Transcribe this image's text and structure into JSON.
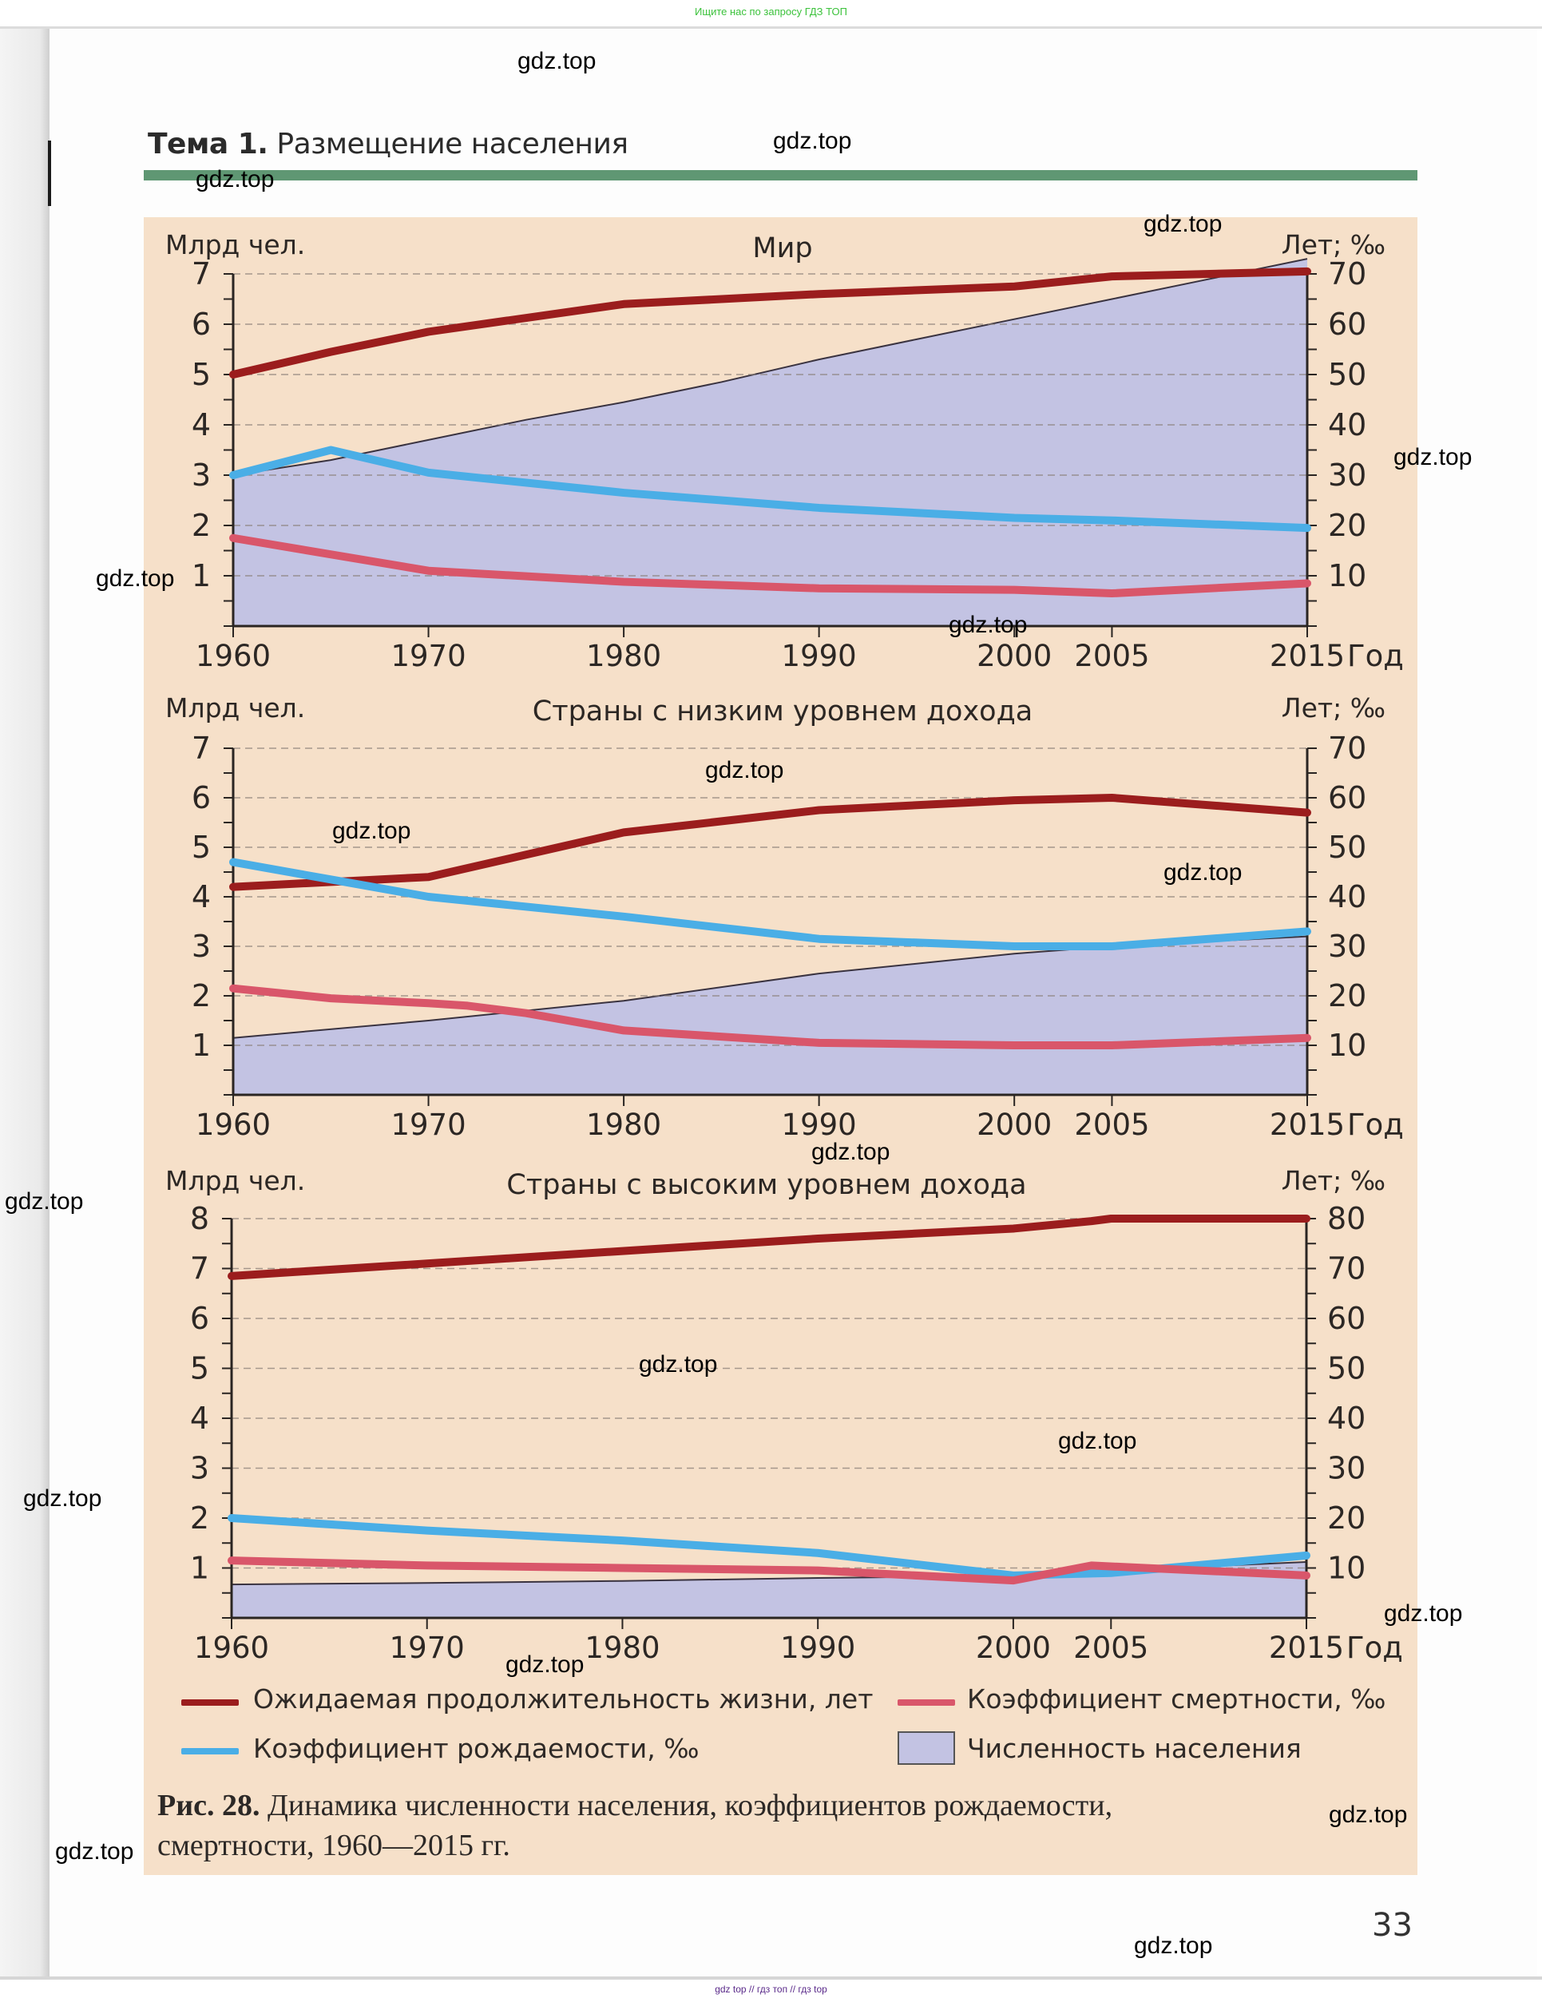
{
  "banner_top": "Ищите нас по запросу ГДЗ ТОП",
  "banner_bottom": "gdz top // гдз топ // гдз top",
  "header": {
    "topic_label": "Тема 1.",
    "topic_title": "Размещение населения"
  },
  "page_number": "33",
  "watermarks": [
    {
      "text": "gdz.top",
      "pos": "top-left"
    },
    {
      "text": "gdz.top",
      "pos": "header-center"
    },
    {
      "text": "gdz.top",
      "pos": "header-left"
    },
    {
      "text": "gdz.top",
      "pos": "chart1-top-right"
    },
    {
      "text": "gdz.top",
      "pos": "right-margin"
    },
    {
      "text": "gdz.top",
      "pos": "chart1-left"
    },
    {
      "text": "gdz.top",
      "pos": "chart1-bottom"
    },
    {
      "text": "gdz.top",
      "pos": "chart2-top"
    },
    {
      "text": "gdz.top",
      "pos": "chart2-left"
    },
    {
      "text": "gdz.top",
      "pos": "chart2-right"
    },
    {
      "text": "gdz.top",
      "pos": "chart2-bottom"
    },
    {
      "text": "gdz.top",
      "pos": "left-margin-1"
    },
    {
      "text": "gdz.top",
      "pos": "chart3-center"
    },
    {
      "text": "gdz.top",
      "pos": "chart3-right"
    },
    {
      "text": "gdz.top",
      "pos": "left-margin-2"
    },
    {
      "text": "gdz.top",
      "pos": "right-margin-2"
    },
    {
      "text": "gdz.top",
      "pos": "legend-top"
    },
    {
      "text": "gdz.top",
      "pos": "caption-right"
    },
    {
      "text": "gdz.top",
      "pos": "caption-left"
    },
    {
      "text": "gdz.top",
      "pos": "page-bottom"
    }
  ],
  "colors": {
    "panel_bg": "#f6e0c9",
    "life_expectancy": "#9b1d1d",
    "death_rate": "#d9566a",
    "birth_rate": "#4aaee6",
    "population_fill": "#c3c3e3",
    "header_bar": "#5f9773"
  },
  "legend": [
    {
      "key": "life",
      "label": "Ожидаемая продолжительность жизни, лет",
      "type": "line",
      "color": "#9b1d1d"
    },
    {
      "key": "death",
      "label": "Коэффициент смертности, ‰",
      "type": "line",
      "color": "#d9566a"
    },
    {
      "key": "birth",
      "label": "Коэффициент рождаемости, ‰",
      "type": "line",
      "color": "#4aaee6"
    },
    {
      "key": "pop",
      "label": "Численность населения",
      "type": "area",
      "color": "#c3c3e3"
    }
  ],
  "caption": {
    "label": "Рис. 28.",
    "text_line1": " Динамика численности населения, коэффициентов рождаемости,",
    "text_line2": "смертности, 1960—2015 гг."
  },
  "chart_data": [
    {
      "type": "line",
      "title": "Мир",
      "ylabel_left": "Млрд чел.",
      "ylabel_right": "Лет; ‰",
      "xlabel": "Год",
      "x_ticks": [
        1960,
        1970,
        1980,
        1990,
        2000,
        2005,
        2015
      ],
      "ylim_left": [
        0,
        7
      ],
      "yticks_left": [
        1,
        2,
        3,
        4,
        5,
        6,
        7
      ],
      "ylim_right": [
        0,
        70
      ],
      "yticks_right": [
        10,
        20,
        30,
        40,
        50,
        60,
        70
      ],
      "grid": true,
      "series": [
        {
          "name": "Численность населения",
          "axis": "left",
          "type": "area",
          "x": [
            1960,
            1965,
            1970,
            1975,
            1980,
            1985,
            1990,
            1995,
            2000,
            2005,
            2010,
            2015
          ],
          "values": [
            3.0,
            3.3,
            3.7,
            4.1,
            4.45,
            4.85,
            5.3,
            5.7,
            6.1,
            6.5,
            6.9,
            7.3
          ]
        },
        {
          "name": "Ожидаемая продолжительность жизни, лет",
          "axis": "right",
          "x": [
            1960,
            1965,
            1970,
            1980,
            1990,
            2000,
            2005,
            2015
          ],
          "values": [
            50,
            54.5,
            58.5,
            64,
            66,
            67.5,
            69.5,
            70.5
          ]
        },
        {
          "name": "Коэффициент рождаемости, ‰",
          "axis": "right",
          "x": [
            1960,
            1965,
            1970,
            1980,
            1990,
            2000,
            2005,
            2015
          ],
          "values": [
            30,
            35,
            30.5,
            26.5,
            23.5,
            21.5,
            21,
            19.5
          ]
        },
        {
          "name": "Коэффициент смертности, ‰",
          "axis": "right",
          "x": [
            1960,
            1970,
            1980,
            1990,
            2000,
            2005,
            2015
          ],
          "values": [
            17.5,
            11,
            8.8,
            7.5,
            7.2,
            6.5,
            8.5
          ]
        }
      ]
    },
    {
      "type": "line",
      "title": "Страны с низким уровнем дохода",
      "ylabel_left": "Млрд чел.",
      "ylabel_right": "Лет; ‰",
      "xlabel": "Год",
      "x_ticks": [
        1960,
        1970,
        1980,
        1990,
        2000,
        2005,
        2015
      ],
      "ylim_left": [
        0,
        7
      ],
      "yticks_left": [
        1,
        2,
        3,
        4,
        5,
        6,
        7
      ],
      "ylim_right": [
        0,
        70
      ],
      "yticks_right": [
        10,
        20,
        30,
        40,
        50,
        60,
        70
      ],
      "grid": true,
      "series": [
        {
          "name": "Численность населения",
          "axis": "left",
          "type": "area",
          "x": [
            1960,
            1970,
            1980,
            1990,
            2000,
            2005,
            2015
          ],
          "values": [
            1.15,
            1.5,
            1.9,
            2.45,
            2.85,
            3.0,
            3.2
          ]
        },
        {
          "name": "Ожидаемая продолжительность жизни, лет",
          "axis": "right",
          "x": [
            1960,
            1970,
            1975,
            1980,
            1990,
            2000,
            2005,
            2015
          ],
          "values": [
            42,
            44,
            48.5,
            53,
            57.5,
            59.5,
            60,
            57
          ]
        },
        {
          "name": "Коэффициент рождаемости, ‰",
          "axis": "right",
          "x": [
            1960,
            1965,
            1970,
            1980,
            1990,
            2000,
            2005,
            2015
          ],
          "values": [
            47,
            43.5,
            40,
            36,
            31.5,
            30,
            30,
            33
          ]
        },
        {
          "name": "Коэффициент смертности, ‰",
          "axis": "right",
          "x": [
            1960,
            1965,
            1970,
            1972,
            1975,
            1980,
            1990,
            2000,
            2005,
            2015
          ],
          "values": [
            21.5,
            19.5,
            18.5,
            18,
            16.5,
            13,
            10.5,
            10,
            10,
            11.5
          ]
        }
      ]
    },
    {
      "type": "line",
      "title": "Страны с высоким уровнем дохода",
      "ylabel_left": "Млрд чел.",
      "ylabel_right": "Лет; ‰",
      "xlabel": "Год",
      "x_ticks": [
        1960,
        1970,
        1980,
        1990,
        2000,
        2005,
        2015
      ],
      "ylim_left": [
        0,
        8
      ],
      "yticks_left": [
        1,
        2,
        3,
        4,
        5,
        6,
        7,
        8
      ],
      "ylim_right": [
        0,
        80
      ],
      "yticks_right": [
        10,
        20,
        30,
        40,
        50,
        60,
        70,
        80
      ],
      "grid": true,
      "series": [
        {
          "name": "Численность населения",
          "axis": "left",
          "type": "area",
          "x": [
            1960,
            1970,
            1980,
            1990,
            2000,
            2005,
            2015
          ],
          "values": [
            0.67,
            0.7,
            0.74,
            0.8,
            0.84,
            0.95,
            1.12
          ]
        },
        {
          "name": "Ожидаемая продолжительность жизни, лет",
          "axis": "right",
          "x": [
            1960,
            1970,
            1980,
            1990,
            2000,
            2004,
            2005,
            2015
          ],
          "values": [
            68.5,
            71,
            73.5,
            76,
            78,
            79.5,
            80,
            80
          ]
        },
        {
          "name": "Коэффициент рождаемости, ‰",
          "axis": "right",
          "x": [
            1960,
            1970,
            1980,
            1990,
            2000,
            2005,
            2015
          ],
          "values": [
            20,
            17.5,
            15.5,
            13,
            8.5,
            9,
            12.5
          ]
        },
        {
          "name": "Коэффициент смертности, ‰",
          "axis": "right",
          "x": [
            1960,
            1970,
            1980,
            1990,
            2000,
            2004,
            2015
          ],
          "values": [
            11.5,
            10.5,
            10,
            9.5,
            7.5,
            10.5,
            8.5
          ]
        }
      ]
    }
  ]
}
